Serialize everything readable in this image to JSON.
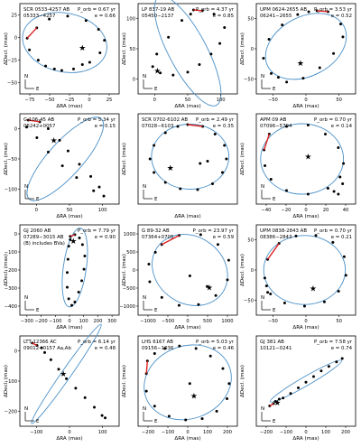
{
  "figure": {
    "ylabel": "ΔDecl. (mas)",
    "xlabel": "ΔRA (mas)",
    "compass_n": "N",
    "compass_e": "E",
    "orbit_color": "#4a90c8",
    "arrow_color": "#dd2222"
  },
  "chart_data": [
    {
      "type": "scatter",
      "name_line1": "SCR 0533-4257 AB",
      "name_line2": "05333−4257",
      "period": "0.67 yr",
      "ecc": "0.66",
      "x_ticks": [
        "−75",
        "−50",
        "−25",
        "0",
        "25"
      ],
      "y_ticks": [
        "25",
        "0",
        "−25",
        "−50"
      ],
      "xlim": [
        -95,
        40
      ],
      "ylim": [
        -68,
        55
      ],
      "ellipse": {
        "cx": -34,
        "cy": 2,
        "rx": 58,
        "ry": 40,
        "rot": 12
      },
      "points": [
        [
          -85,
          8
        ],
        [
          -72,
          22
        ],
        [
          -55,
          34
        ],
        [
          -30,
          38
        ],
        [
          -5,
          32
        ],
        [
          12,
          20
        ],
        [
          20,
          5
        ],
        [
          14,
          -12
        ],
        [
          0,
          -25
        ],
        [
          -22,
          -34
        ],
        [
          -48,
          -34
        ],
        [
          -70,
          -22
        ],
        [
          -82,
          -8
        ],
        [
          -60,
          -30
        ],
        [
          -38,
          -36
        ],
        [
          -10,
          -28
        ]
      ],
      "star": [
        -10,
        -5
      ]
    },
    {
      "type": "scatter",
      "name_line1": "LP 837-19 AB",
      "name_line2": "05450−2137",
      "period": "4.37 yr",
      "ecc": "0.85",
      "x_ticks": [
        "0",
        "50",
        "100"
      ],
      "y_ticks": [
        "100",
        "50",
        "0"
      ],
      "xlim": [
        -30,
        140
      ],
      "ylim": [
        -40,
        175
      ],
      "ellipse": {
        "cx": 55,
        "cy": 62,
        "rx": 105,
        "ry": 45,
        "rot": 62
      },
      "points": [
        [
          65,
          160
        ],
        [
          80,
          158
        ],
        [
          100,
          150
        ],
        [
          118,
          118
        ],
        [
          110,
          80
        ],
        [
          95,
          55
        ],
        [
          75,
          30
        ],
        [
          55,
          12
        ],
        [
          30,
          5
        ],
        [
          8,
          10
        ],
        [
          -5,
          25
        ],
        [
          2,
          55
        ],
        [
          22,
          95
        ],
        [
          45,
          135
        ],
        [
          60,
          150
        ]
      ],
      "star": [
        3,
        15
      ]
    },
    {
      "type": "scatter",
      "name_line1": "UPM 0624-2655 AB",
      "name_line2": "06241−2655",
      "period": "3.53 yr",
      "ecc": "0.52",
      "x_ticks": [
        "−50",
        "0",
        "50"
      ],
      "y_ticks": [
        "50",
        "0",
        "−50"
      ],
      "xlim": [
        -85,
        95
      ],
      "ylim": [
        -95,
        95
      ],
      "ellipse": {
        "cx": 5,
        "cy": 5,
        "rx": 78,
        "ry": 62,
        "rot": -28
      },
      "points": [
        [
          25,
          80
        ],
        [
          45,
          78
        ],
        [
          68,
          52
        ],
        [
          72,
          25
        ],
        [
          55,
          -10
        ],
        [
          30,
          -40
        ],
        [
          0,
          -62
        ],
        [
          -30,
          -70
        ],
        [
          -58,
          -52
        ],
        [
          -72,
          -20
        ],
        [
          -62,
          20
        ],
        [
          -38,
          50
        ],
        [
          -10,
          72
        ],
        [
          10,
          78
        ],
        [
          -45,
          -60
        ]
      ],
      "star": [
        -5,
        -30
      ]
    },
    {
      "type": "scatter",
      "name_line1": "G 106-45 AB",
      "name_line2": "06242+0057",
      "period": "5.34 yr",
      "ecc": "0.15",
      "x_ticks": [
        "0",
        "50",
        "100"
      ],
      "y_ticks": [
        "0",
        "−50",
        "−100"
      ],
      "xlim": [
        -30,
        145
      ],
      "ylim": [
        -140,
        30
      ],
      "ellipse": {
        "cx": 50,
        "cy": -55,
        "rx": 95,
        "ry": 32,
        "rot": -48
      },
      "points": [
        [
          -15,
          18
        ],
        [
          5,
          15
        ],
        [
          20,
          2
        ],
        [
          40,
          -20
        ],
        [
          55,
          -40
        ],
        [
          75,
          -65
        ],
        [
          95,
          -88
        ],
        [
          110,
          -108
        ],
        [
          118,
          -125
        ],
        [
          100,
          -115
        ],
        [
          70,
          -90
        ],
        [
          45,
          -68
        ],
        [
          20,
          -42
        ],
        [
          0,
          -15
        ],
        [
          -18,
          5
        ]
      ],
      "star": [
        30,
        -20
      ]
    },
    {
      "type": "scatter",
      "name_line1": "SCR 0702-6102 AB",
      "name_line2": "07028−6103",
      "period": "2.49 yr",
      "ecc": "0.35",
      "x_ticks": [],
      "y_ticks": [],
      "xlim": [
        -100,
        100
      ],
      "ylim": [
        -100,
        100
      ],
      "ellipse": {
        "cx": 5,
        "cy": 5,
        "rx": 78,
        "ry": 72,
        "rot": 0
      },
      "points": [
        [
          0,
          76
        ],
        [
          30,
          72
        ],
        [
          55,
          55
        ],
        [
          74,
          30
        ],
        [
          78,
          0
        ],
        [
          70,
          -30
        ],
        [
          50,
          -55
        ],
        [
          20,
          -68
        ],
        [
          -15,
          -66
        ],
        [
          -45,
          -52
        ],
        [
          -68,
          -30
        ],
        [
          -76,
          0
        ],
        [
          -68,
          30
        ],
        [
          -45,
          58
        ],
        [
          -20,
          72
        ],
        [
          25,
          -10
        ],
        [
          40,
          -5
        ]
      ],
      "star": [
        -35,
        -20
      ]
    },
    {
      "type": "scatter",
      "name_line1": "APM 09 AB",
      "name_line2": "07096−5704",
      "period": "0.70 yr",
      "ecc": "0.14",
      "x_ticks": [
        "−40",
        "−20",
        "0",
        "20",
        "40"
      ],
      "y_ticks": [],
      "xlim": [
        -55,
        60
      ],
      "ylim": [
        -100,
        100
      ],
      "ellipse": {
        "cx": -2,
        "cy": 0,
        "rx": 48,
        "ry": 78,
        "rot": 0
      },
      "points": [
        [
          -40,
          55
        ],
        [
          -46,
          20
        ],
        [
          -45,
          -15
        ],
        [
          -38,
          -45
        ],
        [
          -20,
          -70
        ],
        [
          5,
          -78
        ],
        [
          28,
          -65
        ],
        [
          42,
          -40
        ],
        [
          46,
          -10
        ],
        [
          40,
          25
        ],
        [
          25,
          55
        ],
        [
          5,
          75
        ],
        [
          -20,
          72
        ],
        [
          35,
          -72
        ],
        [
          40,
          -78
        ],
        [
          45,
          -55
        ]
      ],
      "star": [
        5,
        5
      ]
    },
    {
      "type": "scatter",
      "name_line1": "GJ 2060 AB",
      "name_line2": "07289−3015 AB",
      "name_line3": "(B) includes BVa)",
      "period": "7.79 yr",
      "ecc": "0.90",
      "x_ticks": [
        "−300",
        "−200",
        "−100",
        "0",
        "100",
        "200",
        "300"
      ],
      "y_ticks": [
        "0",
        "−100",
        "−200",
        "−300",
        "−400"
      ],
      "xlim": [
        -320,
        330
      ],
      "ylim": [
        -460,
        90
      ],
      "ellipse": {
        "cx": 40,
        "cy": -170,
        "rx": 260,
        "ry": 70,
        "rot": -82
      },
      "points": [
        [
          10,
          20
        ],
        [
          40,
          30
        ],
        [
          70,
          10
        ],
        [
          90,
          -30
        ],
        [
          105,
          -100
        ],
        [
          100,
          -180
        ],
        [
          85,
          -250
        ],
        [
          65,
          -320
        ],
        [
          40,
          -380
        ],
        [
          20,
          -400
        ],
        [
          0,
          -360
        ],
        [
          -10,
          -290
        ],
        [
          -10,
          -200
        ],
        [
          -5,
          -120
        ],
        [
          0,
          -40
        ],
        [
          10,
          0
        ]
      ],
      "star": [
        30,
        -10
      ]
    },
    {
      "type": "scatter",
      "name_line1": "G 89-32 AB",
      "name_line2": "07364+0705",
      "period": "23.97 yr",
      "ecc": "0.59",
      "x_ticks": [
        "−1000",
        "−500",
        "0",
        "500",
        "1000"
      ],
      "y_ticks": [
        "1000",
        "500",
        "0",
        "−500",
        "−1000"
      ],
      "xlim": [
        -1150,
        1150
      ],
      "ylim": [
        -1150,
        1150
      ],
      "ellipse": {
        "cx": 50,
        "cy": 0,
        "rx": 920,
        "ry": 850,
        "rot": 35
      },
      "points": [
        [
          -600,
          650
        ],
        [
          -200,
          880
        ],
        [
          300,
          900
        ],
        [
          700,
          650
        ],
        [
          950,
          250
        ],
        [
          920,
          -250
        ],
        [
          650,
          -650
        ],
        [
          250,
          -880
        ],
        [
          -200,
          -900
        ],
        [
          -600,
          -700
        ],
        [
          -880,
          -300
        ],
        [
          -900,
          150
        ],
        [
          -750,
          450
        ],
        [
          450,
          -420
        ],
        [
          50,
          -150
        ]
      ],
      "star": [
        500,
        -450
      ]
    },
    {
      "type": "scatter",
      "name_line1": "UPM 0838-2843 AB",
      "name_line2": "08386−2843",
      "period": "0.70 yr",
      "ecc": "0.21",
      "x_ticks": [
        "−50",
        "0",
        "50"
      ],
      "y_ticks": [
        "50",
        "0",
        "−50"
      ],
      "xlim": [
        -90,
        85
      ],
      "ylim": [
        -85,
        85
      ],
      "ellipse": {
        "cx": -5,
        "cy": 0,
        "rx": 72,
        "ry": 65,
        "rot": 0
      },
      "points": [
        [
          -50,
          50
        ],
        [
          -70,
          20
        ],
        [
          -75,
          -15
        ],
        [
          -65,
          -45
        ],
        [
          -40,
          -62
        ],
        [
          -5,
          -68
        ],
        [
          30,
          -60
        ],
        [
          55,
          -40
        ],
        [
          68,
          -10
        ],
        [
          65,
          25
        ],
        [
          45,
          52
        ],
        [
          15,
          65
        ],
        [
          -20,
          64
        ],
        [
          -72,
          -30
        ],
        [
          -70,
          -42
        ]
      ],
      "star": [
        10,
        -35
      ]
    },
    {
      "type": "scatter",
      "name_line1": "LTT 12366 AC",
      "name_line2": "09012+0157 Aa,Ab",
      "period": "6.14 yr",
      "ecc": "0.48",
      "x_ticks": [
        "−100",
        "0",
        "100"
      ],
      "y_ticks": [
        "0",
        "−100",
        "−200"
      ],
      "xlim": [
        -170,
        150
      ],
      "ylim": [
        -260,
        120
      ],
      "ellipse": {
        "cx": -20,
        "cy": -40,
        "rx": 195,
        "ry": 20,
        "rot": -55
      },
      "points": [
        [
          -130,
          90
        ],
        [
          -115,
          80
        ],
        [
          -90,
          50
        ],
        [
          -70,
          20
        ],
        [
          -45,
          -20
        ],
        [
          -20,
          -60
        ],
        [
          10,
          -100
        ],
        [
          40,
          -140
        ],
        [
          70,
          -180
        ],
        [
          95,
          -215
        ],
        [
          105,
          -225
        ],
        [
          -100,
          70
        ]
      ],
      "star": [
        -30,
        -40
      ]
    },
    {
      "type": "scatter",
      "name_line1": "LHS 6167 AB",
      "name_line2": "09156−1036",
      "period": "5.03 yr",
      "ecc": "0.46",
      "x_ticks": [
        "−200",
        "−100",
        "0",
        "100",
        "200"
      ],
      "y_ticks": [],
      "xlim": [
        -240,
        240
      ],
      "ylim": [
        -180,
        180
      ],
      "ellipse": {
        "cx": 0,
        "cy": -5,
        "rx": 215,
        "ry": 145,
        "rot": -20
      },
      "points": [
        [
          -200,
          30
        ],
        [
          -195,
          80
        ],
        [
          -160,
          110
        ],
        [
          -110,
          130
        ],
        [
          -40,
          140
        ],
        [
          40,
          130
        ],
        [
          110,
          100
        ],
        [
          170,
          50
        ],
        [
          200,
          -10
        ],
        [
          190,
          -70
        ],
        [
          140,
          -120
        ],
        [
          70,
          -150
        ],
        [
          -10,
          -155
        ],
        [
          -90,
          -140
        ],
        [
          -160,
          -100
        ],
        [
          -200,
          -40
        ],
        [
          10,
          -10
        ]
      ],
      "star": [
        30,
        -60
      ]
    },
    {
      "type": "scatter",
      "name_line1": "GJ 381 AB",
      "name_line2": "10121−0241",
      "period": "7.58 yr",
      "ecc": "0.74",
      "x_ticks": [
        "−200",
        "−100",
        "0",
        "100",
        "200"
      ],
      "y_ticks": [],
      "xlim": [
        -260,
        260
      ],
      "ylim": [
        -200,
        200
      ],
      "ellipse": {
        "cx": 0,
        "cy": 0,
        "rx": 215,
        "ry": 20,
        "rot": -30
      },
      "points": [
        [
          -190,
          -110
        ],
        [
          -170,
          -100
        ],
        [
          -150,
          -95
        ],
        [
          -120,
          -75
        ],
        [
          -80,
          -55
        ],
        [
          -40,
          -30
        ],
        [
          0,
          -5
        ],
        [
          40,
          20
        ],
        [
          80,
          45
        ],
        [
          120,
          65
        ],
        [
          160,
          85
        ],
        [
          190,
          100
        ],
        [
          -160,
          -90
        ],
        [
          -140,
          -80
        ]
      ],
      "star": [
        -150,
        -95
      ]
    }
  ]
}
